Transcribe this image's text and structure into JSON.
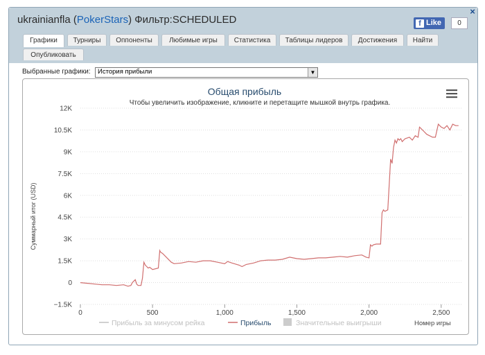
{
  "window": {
    "username": "ukrainianfla",
    "site": "PokerStars",
    "filter_text": "Фильтр:SCHEDULED",
    "fb_like_label": "Like",
    "fb_count": "0",
    "close_label": "×"
  },
  "tabs": [
    {
      "label": "Графики",
      "active": true
    },
    {
      "label": "Турниры"
    },
    {
      "label": "Оппоненты"
    },
    {
      "label": "Любимые игры"
    },
    {
      "label": "Статистика"
    },
    {
      "label": "Таблицы лидеров"
    },
    {
      "label": "Достижения"
    },
    {
      "label": "Найти"
    },
    {
      "label": "Опубликовать"
    }
  ],
  "selector": {
    "label": "Выбранные графики:",
    "value": "История прибыли"
  },
  "colors": {
    "profit_line": "#d06e6e",
    "title": "#274b6d",
    "legend_active": "#274b6d",
    "legend_inactive": "#c0c0c0",
    "grid": "#dddddd",
    "panel_header": "#c2d1db"
  },
  "icons": {
    "menu": "hamburger-menu-icon",
    "facebook": "facebook-icon",
    "close": "close-icon"
  },
  "chart_data": {
    "type": "line",
    "title": "Общая прибыль",
    "subtitle": "Чтобы увеличить изображение, кликните и перетащите мышкой внутрь графика.",
    "ylabel": "Суммарный итог (USD)",
    "xlabel": "Номер игры",
    "ylim": [
      -1500,
      12000
    ],
    "xlim": [
      0,
      2650
    ],
    "y_ticks": [
      "−1.5K",
      "0",
      "1.5K",
      "3K",
      "4.5K",
      "6K",
      "7.5K",
      "9K",
      "10.5K",
      "12K"
    ],
    "y_tick_values": [
      -1500,
      0,
      1500,
      3000,
      4500,
      6000,
      7500,
      9000,
      10500,
      12000
    ],
    "x_ticks": [
      "0",
      "500",
      "1,000",
      "1,500",
      "2,000",
      "2,500"
    ],
    "x_tick_values": [
      0,
      500,
      1000,
      1500,
      2000,
      2500
    ],
    "grid": true,
    "legend_position": "bottom",
    "legend": [
      {
        "name": "Прибыль за минусом рейка",
        "visible": false
      },
      {
        "name": "Прибыль",
        "visible": true
      },
      {
        "name": "Значительные выигрыши",
        "visible": false
      }
    ],
    "series": [
      {
        "name": "Прибыль",
        "x": [
          0,
          50,
          100,
          150,
          200,
          250,
          300,
          330,
          350,
          360,
          380,
          390,
          400,
          410,
          420,
          430,
          440,
          450,
          460,
          470,
          480,
          500,
          540,
          550,
          555,
          570,
          580,
          600,
          630,
          650,
          700,
          750,
          800,
          850,
          900,
          950,
          1000,
          1020,
          1050,
          1100,
          1120,
          1150,
          1200,
          1250,
          1300,
          1350,
          1400,
          1450,
          1500,
          1550,
          1600,
          1650,
          1700,
          1750,
          1800,
          1850,
          1900,
          1950,
          1980,
          2000,
          2010,
          2020,
          2030,
          2050,
          2080,
          2090,
          2100,
          2110,
          2130,
          2150,
          2160,
          2170,
          2180,
          2190,
          2200,
          2210,
          2220,
          2230,
          2250,
          2280,
          2300,
          2320,
          2340,
          2350,
          2360,
          2380,
          2400,
          2420,
          2440,
          2460,
          2480,
          2500,
          2520,
          2540,
          2560,
          2580,
          2600,
          2620
        ],
        "y": [
          0,
          -50,
          -100,
          -150,
          -150,
          -200,
          -150,
          -250,
          -200,
          0,
          200,
          -100,
          -200,
          -200,
          -200,
          300,
          1400,
          1200,
          1100,
          1000,
          1050,
          900,
          1000,
          2200,
          2100,
          2000,
          1900,
          1700,
          1400,
          1300,
          1350,
          1450,
          1400,
          1500,
          1500,
          1400,
          1300,
          1450,
          1350,
          1200,
          1100,
          1250,
          1350,
          1500,
          1550,
          1550,
          1600,
          1750,
          1650,
          1600,
          1650,
          1700,
          1700,
          1750,
          1800,
          1750,
          1850,
          1900,
          1750,
          1700,
          2600,
          2500,
          2600,
          2650,
          2650,
          4800,
          5000,
          4900,
          5000,
          8500,
          8200,
          9300,
          9800,
          9600,
          9900,
          9800,
          9900,
          9700,
          9900,
          10000,
          9800,
          10100,
          10000,
          10700,
          10600,
          10400,
          10200,
          10100,
          10000,
          10000,
          10900,
          10700,
          10600,
          10800,
          10500,
          10900,
          10800,
          10800
        ]
      }
    ]
  }
}
